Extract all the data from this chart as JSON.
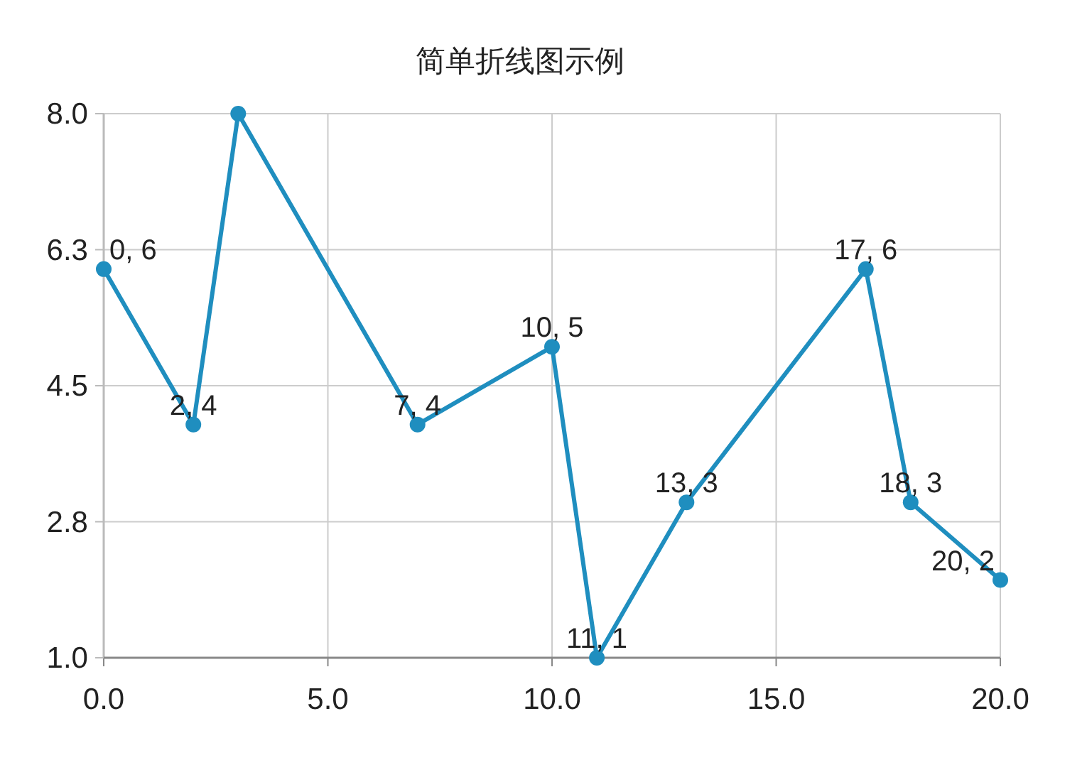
{
  "chart_data": {
    "type": "line",
    "title": "简单折线图示例",
    "x": [
      0,
      2,
      3,
      7,
      10,
      11,
      13,
      17,
      18,
      20
    ],
    "values": [
      6,
      4,
      8,
      4,
      5,
      1,
      3,
      6,
      3,
      2
    ],
    "color": "#1f8ebf",
    "value_labels": [
      "0, 6",
      "2, 4",
      null,
      "7, 4",
      "10, 5",
      "11, 1",
      "13, 3",
      "17, 6",
      "18, 3",
      "20, 2"
    ],
    "xlim": [
      0,
      20
    ],
    "xticks": [
      {
        "value": 0,
        "label": "0.0"
      },
      {
        "value": 5,
        "label": "5.0"
      },
      {
        "value": 10,
        "label": "10.0"
      },
      {
        "value": 15,
        "label": "15.0"
      },
      {
        "value": 20,
        "label": "20.0"
      }
    ],
    "ylim": [
      1,
      8
    ],
    "yticks": [
      {
        "value": 1,
        "label": "1.0"
      },
      {
        "value": 2.75,
        "label": "2.8"
      },
      {
        "value": 4.5,
        "label": "4.5"
      },
      {
        "value": 6.25,
        "label": "6.3"
      },
      {
        "value": 8,
        "label": "8.0"
      }
    ],
    "grid": true,
    "marker": "circle",
    "line_style": "solid"
  }
}
